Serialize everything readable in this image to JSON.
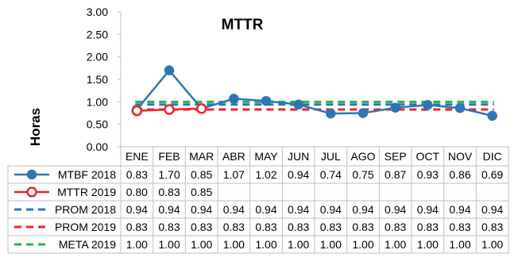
{
  "chart_data": {
    "type": "line",
    "title": "MTTR",
    "ylabel": "Horas",
    "xlabel": "",
    "ylim": [
      0,
      3.0
    ],
    "yticks": [
      "0.00",
      "0.50",
      "1.00",
      "1.50",
      "2.00",
      "2.50",
      "3.00"
    ],
    "grid": false,
    "legend": "data-table",
    "categories": [
      "ENE",
      "FEB",
      "MAR",
      "ABR",
      "MAY",
      "JUN",
      "JUL",
      "AGO",
      "SEP",
      "OCT",
      "NOV",
      "DIC"
    ],
    "series": [
      {
        "name": "MTBF 2018",
        "color": "#2e75b6",
        "style": "solid-marker-filled",
        "values": [
          0.83,
          1.7,
          0.85,
          1.07,
          1.02,
          0.94,
          0.74,
          0.75,
          0.87,
          0.93,
          0.86,
          0.69
        ],
        "labels": [
          "0.83",
          "1.70",
          "0.85",
          "1.07",
          "1.02",
          "0.94",
          "0.74",
          "0.75",
          "0.87",
          "0.93",
          "0.86",
          "0.69"
        ]
      },
      {
        "name": "MTTR 2019",
        "color": "#e8262a",
        "style": "solid-marker-hollow",
        "values": [
          0.8,
          0.83,
          0.85,
          null,
          null,
          null,
          null,
          null,
          null,
          null,
          null,
          null
        ],
        "labels": [
          "0.80",
          "0.83",
          "0.85",
          "",
          "",
          "",
          "",
          "",
          "",
          "",
          "",
          ""
        ]
      },
      {
        "name": "PROM 2018",
        "color": "#2e75b6",
        "style": "dashed",
        "values": [
          0.94,
          0.94,
          0.94,
          0.94,
          0.94,
          0.94,
          0.94,
          0.94,
          0.94,
          0.94,
          0.94,
          0.94
        ],
        "labels": [
          "0.94",
          "0.94",
          "0.94",
          "0.94",
          "0.94",
          "0.94",
          "0.94",
          "0.94",
          "0.94",
          "0.94",
          "0.94",
          "0.94"
        ]
      },
      {
        "name": "PROM 2019",
        "color": "#e8262a",
        "style": "dashed",
        "values": [
          0.83,
          0.83,
          0.83,
          0.83,
          0.83,
          0.83,
          0.83,
          0.83,
          0.83,
          0.83,
          0.83,
          0.83
        ],
        "labels": [
          "0.83",
          "0.83",
          "0.83",
          "0.83",
          "0.83",
          "0.83",
          "0.83",
          "0.83",
          "0.83",
          "0.83",
          "0.83",
          "0.83"
        ]
      },
      {
        "name": "META 2019",
        "color": "#2bb24c",
        "style": "dashed",
        "values": [
          1.0,
          1.0,
          1.0,
          1.0,
          1.0,
          1.0,
          1.0,
          1.0,
          1.0,
          1.0,
          1.0,
          1.0
        ],
        "labels": [
          "1.00",
          "1.00",
          "1.00",
          "1.00",
          "1.00",
          "1.00",
          "1.00",
          "1.00",
          "1.00",
          "1.00",
          "1.00",
          "1.00"
        ]
      }
    ]
  }
}
